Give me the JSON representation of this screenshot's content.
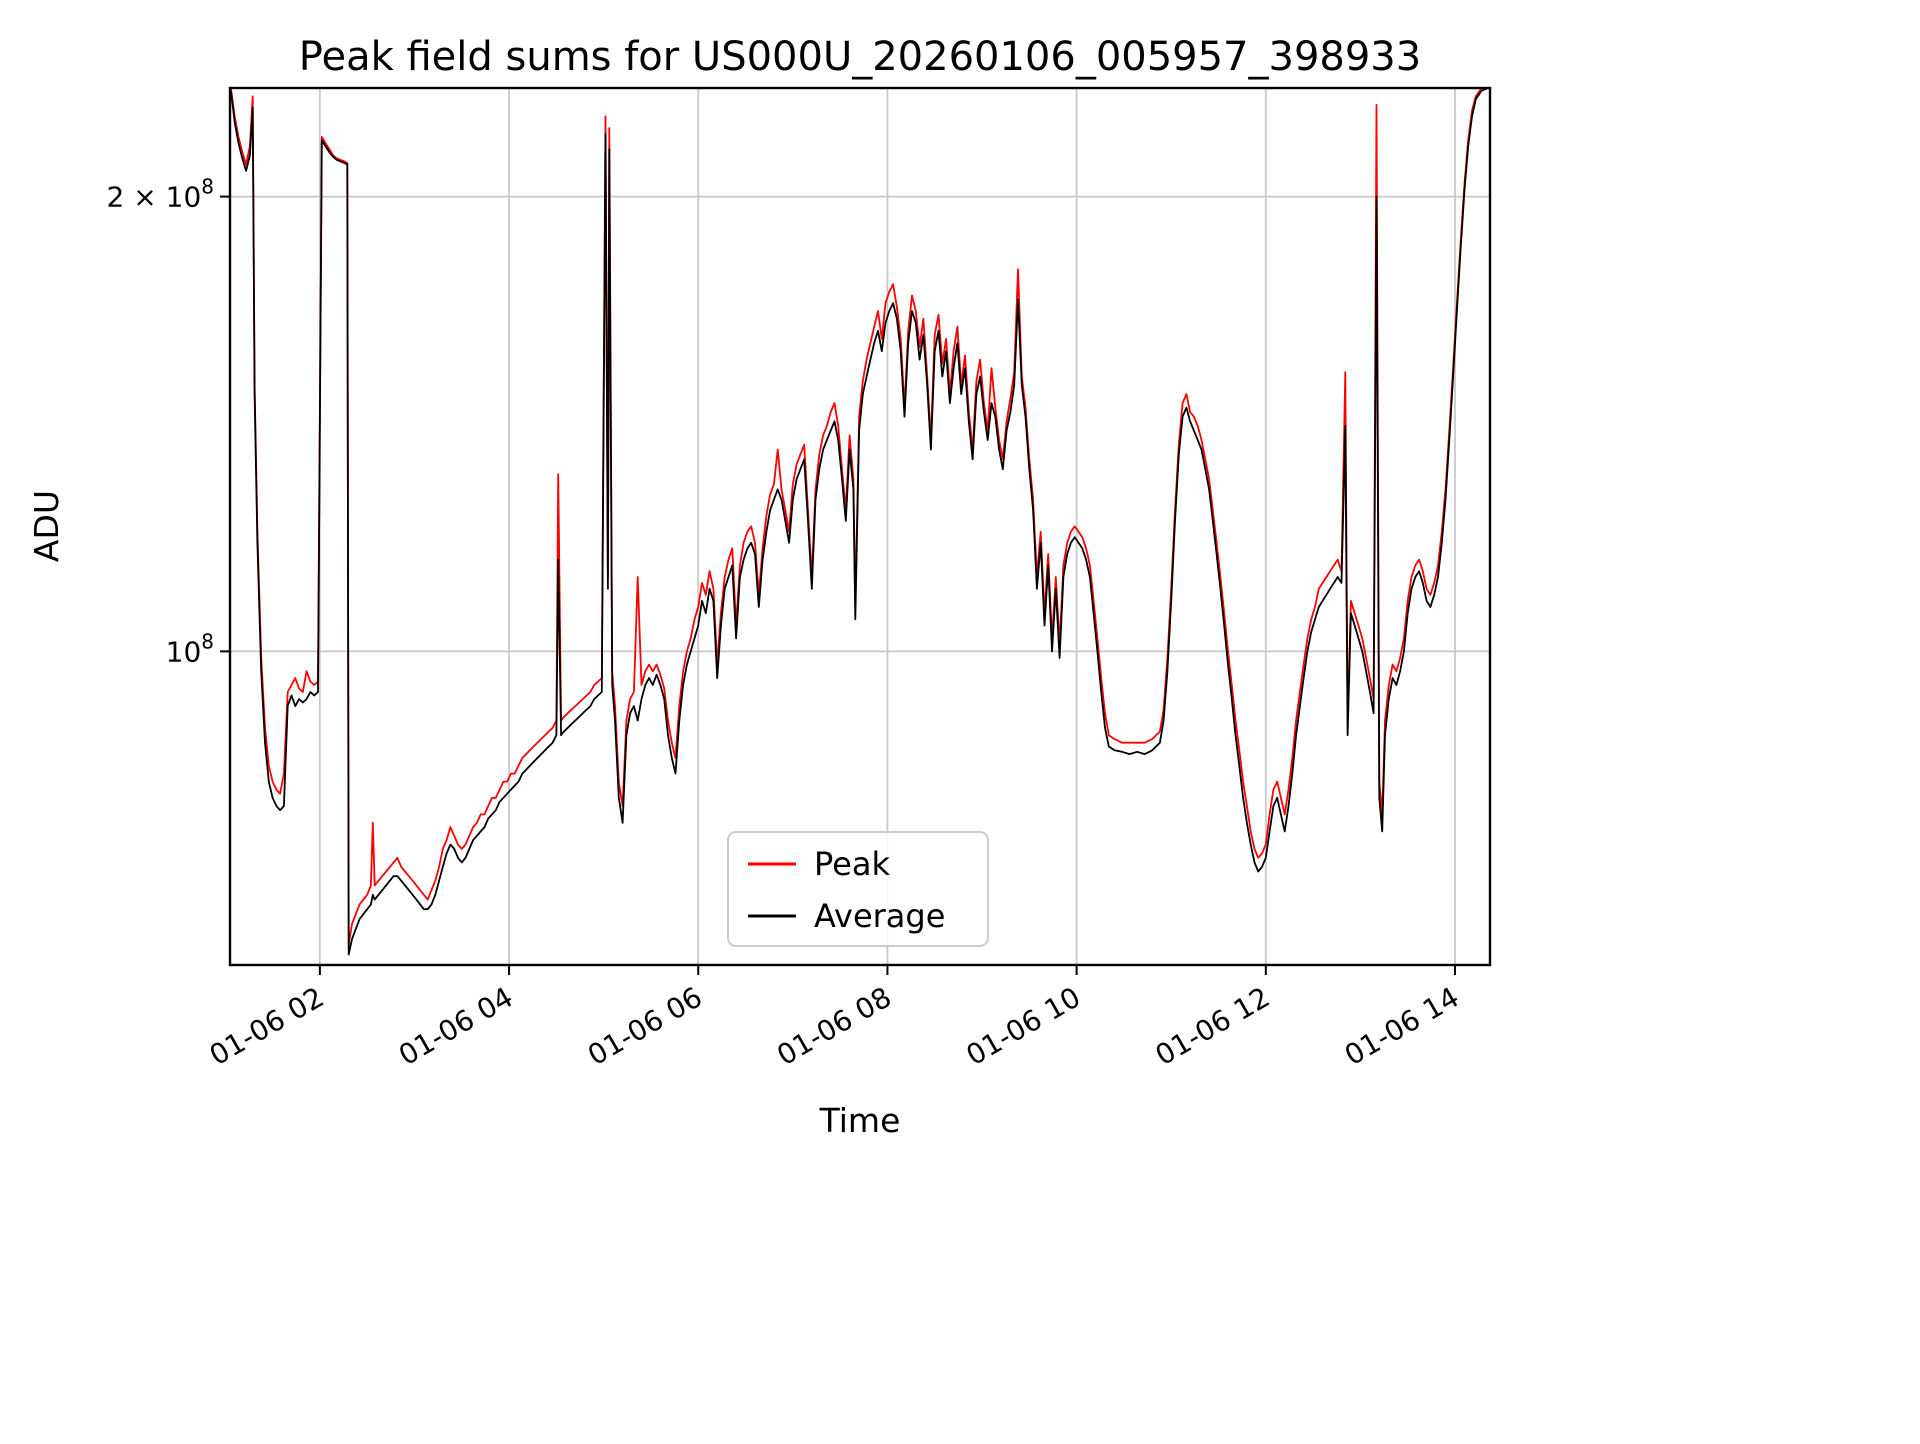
{
  "chart_data": {
    "type": "line",
    "title": "Peak field sums for US000U_20260106_005957_398933",
    "xlabel": "Time",
    "ylabel": "ADU",
    "yscale": "log",
    "grid": true,
    "legend_position": "lower center inside axes",
    "xlim": [
      1.05,
      14.37
    ],
    "ylim": [
      62000000,
      236000000
    ],
    "value_scale": 1000000,
    "x_ticks": [
      {
        "value": 2,
        "label": "01-06 02"
      },
      {
        "value": 4,
        "label": "01-06 04"
      },
      {
        "value": 6,
        "label": "01-06 06"
      },
      {
        "value": 8,
        "label": "01-06 08"
      },
      {
        "value": 10,
        "label": "01-06 10"
      },
      {
        "value": 12,
        "label": "01-06 12"
      },
      {
        "value": 14,
        "label": "01-06 14"
      }
    ],
    "y_ticks": [
      {
        "value": 200000000,
        "mantissa": "2 × 10",
        "exponent": "8"
      },
      {
        "value": 100000000,
        "mantissa": "10",
        "exponent": "8"
      }
    ],
    "x": [
      1.06,
      1.1,
      1.14,
      1.18,
      1.22,
      1.26,
      1.29,
      1.31,
      1.34,
      1.38,
      1.42,
      1.46,
      1.5,
      1.54,
      1.58,
      1.62,
      1.66,
      1.7,
      1.74,
      1.78,
      1.82,
      1.86,
      1.9,
      1.94,
      1.98,
      2.02,
      2.06,
      2.1,
      2.14,
      2.18,
      2.22,
      2.26,
      2.29,
      2.305,
      2.34,
      2.38,
      2.42,
      2.46,
      2.5,
      2.54,
      2.56,
      2.58,
      2.62,
      2.66,
      2.7,
      2.74,
      2.78,
      2.82,
      2.86,
      2.9,
      2.94,
      2.98,
      3.02,
      3.06,
      3.1,
      3.14,
      3.18,
      3.22,
      3.26,
      3.3,
      3.34,
      3.38,
      3.42,
      3.46,
      3.5,
      3.54,
      3.58,
      3.62,
      3.66,
      3.7,
      3.74,
      3.78,
      3.82,
      3.86,
      3.9,
      3.94,
      3.98,
      4.02,
      4.06,
      4.1,
      4.14,
      4.18,
      4.22,
      4.26,
      4.3,
      4.34,
      4.38,
      4.42,
      4.46,
      4.5,
      4.52,
      4.55,
      4.58,
      4.62,
      4.66,
      4.7,
      4.74,
      4.78,
      4.82,
      4.86,
      4.9,
      4.94,
      4.98,
      5.02,
      5.045,
      5.06,
      5.09,
      5.12,
      5.16,
      5.2,
      5.24,
      5.28,
      5.32,
      5.36,
      5.4,
      5.44,
      5.48,
      5.52,
      5.56,
      5.6,
      5.64,
      5.68,
      5.72,
      5.76,
      5.8,
      5.84,
      5.88,
      5.92,
      5.96,
      6.0,
      6.04,
      6.08,
      6.12,
      6.16,
      6.2,
      6.24,
      6.28,
      6.32,
      6.36,
      6.4,
      6.44,
      6.48,
      6.52,
      6.56,
      6.6,
      6.64,
      6.68,
      6.72,
      6.76,
      6.8,
      6.84,
      6.88,
      6.92,
      6.96,
      7.0,
      7.04,
      7.08,
      7.12,
      7.16,
      7.2,
      7.24,
      7.28,
      7.32,
      7.36,
      7.4,
      7.44,
      7.48,
      7.52,
      7.56,
      7.6,
      7.64,
      7.66,
      7.7,
      7.74,
      7.78,
      7.82,
      7.86,
      7.9,
      7.94,
      7.98,
      8.02,
      8.06,
      8.1,
      8.14,
      8.18,
      8.22,
      8.26,
      8.3,
      8.34,
      8.38,
      8.42,
      8.46,
      8.5,
      8.54,
      8.58,
      8.62,
      8.66,
      8.7,
      8.74,
      8.78,
      8.82,
      8.86,
      8.9,
      8.94,
      8.98,
      9.02,
      9.06,
      9.1,
      9.14,
      9.18,
      9.22,
      9.26,
      9.3,
      9.34,
      9.38,
      9.42,
      9.46,
      9.5,
      9.54,
      9.58,
      9.62,
      9.66,
      9.7,
      9.74,
      9.78,
      9.82,
      9.86,
      9.9,
      9.94,
      9.98,
      10.02,
      10.06,
      10.1,
      10.14,
      10.18,
      10.22,
      10.26,
      10.3,
      10.34,
      10.4,
      10.48,
      10.56,
      10.64,
      10.72,
      10.8,
      10.88,
      10.92,
      10.96,
      11.0,
      11.04,
      11.08,
      11.12,
      11.16,
      11.2,
      11.24,
      11.28,
      11.32,
      11.36,
      11.4,
      11.44,
      11.48,
      11.52,
      11.56,
      11.6,
      11.64,
      11.68,
      11.72,
      11.76,
      11.8,
      11.84,
      11.88,
      11.92,
      11.96,
      12.0,
      12.04,
      12.08,
      12.12,
      12.16,
      12.2,
      12.24,
      12.28,
      12.32,
      12.36,
      12.4,
      12.44,
      12.48,
      12.52,
      12.56,
      12.6,
      12.64,
      12.68,
      12.72,
      12.76,
      12.8,
      12.84,
      12.865,
      12.9,
      12.94,
      12.98,
      13.02,
      13.06,
      13.1,
      13.14,
      13.17,
      13.2,
      13.23,
      13.26,
      13.3,
      13.34,
      13.38,
      13.42,
      13.46,
      13.5,
      13.54,
      13.58,
      13.62,
      13.66,
      13.7,
      13.74,
      13.78,
      13.82,
      13.86,
      13.9,
      13.94,
      13.98,
      14.02,
      14.06,
      14.1,
      14.14,
      14.18,
      14.22,
      14.28,
      14.35
    ],
    "series": [
      {
        "name": "Peak",
        "color": "#ff0000",
        "values": [
          236,
          226,
          219,
          214,
          210,
          216,
          233,
          150,
          120,
          99,
          89,
          84,
          82,
          81,
          80.5,
          83,
          94,
          95,
          96,
          94.5,
          94,
          97,
          95.5,
          95,
          95.5,
          219,
          217,
          215,
          213,
          212,
          211.5,
          211,
          210.5,
          64,
          66,
          67,
          68,
          68.5,
          69,
          70,
          77,
          70,
          70.5,
          71,
          71.5,
          72,
          72.5,
          73,
          72,
          71.5,
          71,
          70.5,
          70,
          69.5,
          69,
          68.5,
          69.5,
          70.5,
          72,
          74,
          75,
          76.5,
          75.5,
          74.5,
          74,
          74.5,
          75.5,
          76.5,
          77,
          78,
          78,
          79,
          80,
          80,
          81,
          82,
          82,
          83,
          83,
          84,
          85,
          85.5,
          86,
          86.5,
          87,
          87.5,
          88,
          88.5,
          89,
          90,
          131,
          90,
          90.5,
          91,
          91.5,
          92,
          92.5,
          93,
          93.5,
          94,
          95,
          95.5,
          96,
          226,
          112,
          222,
          97,
          92,
          82,
          79,
          90,
          93,
          94,
          112,
          95,
          97,
          98,
          97,
          98,
          96.5,
          94.5,
          90,
          87,
          85,
          92,
          97,
          100,
          102,
          105,
          107,
          111,
          109,
          113,
          110,
          98,
          106,
          112,
          115,
          117,
          104,
          114,
          118,
          120,
          121,
          118,
          109,
          117,
          123,
          127,
          129,
          136,
          128,
          124,
          120,
          129,
          133,
          135,
          137,
          124,
          112,
          128,
          135,
          139,
          141,
          144,
          146,
          141,
          132,
          124,
          139,
          130,
          107,
          143,
          151,
          156,
          160,
          164,
          168,
          161,
          170,
          173,
          175,
          169,
          161,
          145,
          163,
          172,
          168,
          159,
          166,
          152,
          138,
          162,
          167,
          155,
          161,
          148,
          158,
          164,
          150,
          157,
          144,
          136,
          151,
          156,
          146,
          140,
          154,
          145,
          138,
          134,
          142,
          147,
          153,
          179,
          152,
          145,
          134,
          126,
          112,
          120,
          106,
          116,
          102,
          112,
          101,
          114,
          118,
          120,
          121,
          120,
          119,
          117,
          114,
          108,
          102,
          96,
          91,
          88,
          87.5,
          87,
          87,
          87,
          87,
          87.5,
          88.5,
          91.5,
          99,
          110,
          124,
          137,
          146,
          148,
          144,
          143,
          141,
          138,
          134,
          130,
          124,
          118,
          112,
          106,
          100,
          95,
          90,
          86,
          82,
          79,
          76,
          74,
          73,
          73.5,
          74.5,
          78,
          81,
          82,
          80,
          78,
          81,
          85,
          90,
          94,
          98,
          102,
          105,
          107,
          110,
          111,
          112,
          113,
          114,
          115,
          113,
          153,
          90,
          108,
          106,
          104,
          102,
          99,
          96,
          93,
          230,
          82,
          78,
          90,
          95,
          98,
          97,
          99,
          102,
          108,
          112,
          114,
          115,
          113,
          110,
          109,
          111,
          114,
          120,
          128,
          140,
          154,
          170,
          187,
          204,
          218,
          228,
          233,
          236,
          237
        ]
      },
      {
        "name": "Average",
        "color": "#000000",
        "values": [
          235,
          224,
          217,
          212,
          208,
          213,
          229,
          148,
          118,
          97,
          87,
          82,
          80,
          79,
          78.5,
          79,
          92,
          93.5,
          92,
          93,
          92.5,
          93,
          94,
          93.5,
          94,
          218,
          216,
          214,
          212.5,
          211.5,
          211,
          210.5,
          210,
          63,
          64.5,
          65.5,
          66.5,
          67,
          67.5,
          68,
          69,
          68.5,
          69,
          69.5,
          70,
          70.5,
          71,
          71,
          70.5,
          70,
          69.5,
          69,
          68.5,
          68,
          67.5,
          67.5,
          68,
          69,
          70.5,
          72,
          73.5,
          74.5,
          74,
          73,
          72.5,
          73,
          74,
          75,
          75.5,
          76,
          76.5,
          77.5,
          78,
          78.5,
          79.5,
          80,
          80.5,
          81,
          81.5,
          82,
          83,
          83.5,
          84,
          84.5,
          85,
          85.5,
          86,
          86.5,
          87,
          88,
          115,
          88,
          88.5,
          89,
          89.5,
          90,
          90.5,
          91,
          91.5,
          92,
          93,
          93.5,
          94,
          220,
          110,
          215,
          95,
          90,
          80,
          77,
          88,
          91,
          92,
          90,
          93,
          95,
          96,
          95,
          96.5,
          95,
          93,
          88,
          85,
          83,
          90,
          95,
          98,
          100,
          102,
          104,
          108,
          106,
          110,
          108,
          96,
          104,
          110,
          112,
          114,
          102,
          112,
          115,
          117,
          118,
          116,
          107,
          115,
          120,
          124,
          126,
          128,
          126,
          122,
          118,
          126,
          130,
          132,
          134,
          122,
          110,
          126,
          132,
          136,
          138,
          140,
          142,
          138,
          130,
          122,
          136,
          128,
          105,
          140,
          148,
          152,
          156,
          160,
          163,
          158,
          165,
          168,
          170,
          166,
          158,
          143,
          160,
          168,
          165,
          156,
          162,
          150,
          136,
          158,
          163,
          152,
          158,
          146,
          154,
          160,
          148,
          154,
          142,
          134,
          148,
          152,
          144,
          138,
          146,
          143,
          136,
          132,
          140,
          144,
          150,
          171,
          150,
          143,
          132,
          124,
          110,
          118,
          104,
          114,
          100,
          110,
          99,
          112,
          116,
          118,
          119,
          118,
          117,
          115,
          112,
          106,
          100,
          94,
          89,
          86.5,
          86,
          85.8,
          85.5,
          85.8,
          85.5,
          86,
          87,
          90,
          97,
          108,
          122,
          135,
          143,
          145,
          142,
          140,
          138,
          136,
          132,
          128,
          122,
          116,
          110,
          104,
          98,
          93,
          88,
          84,
          80,
          77,
          74.5,
          72.5,
          71.5,
          72,
          73,
          76,
          79,
          80,
          78,
          76,
          79,
          83,
          88,
          92,
          96,
          100,
          103,
          105,
          107,
          108,
          109,
          110,
          111,
          112,
          111,
          141,
          88,
          106,
          104,
          102,
          100,
          97,
          94,
          91,
          200,
          80,
          76,
          88,
          93,
          96,
          95,
          97,
          100,
          106,
          110,
          112,
          113,
          111,
          108,
          107,
          109,
          112,
          118,
          126,
          138,
          152,
          168,
          185,
          202,
          216,
          226,
          232,
          235,
          236
        ]
      }
    ]
  }
}
